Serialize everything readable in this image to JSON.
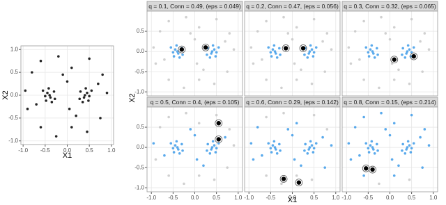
{
  "chart_data": [
    {
      "type": "scatter",
      "xlabel": "X1",
      "ylabel": "X2",
      "xlim": [
        -1.05,
        1.05
      ],
      "ylim": [
        -1.08,
        1.08
      ],
      "xticks": [
        {
          "value": -1,
          "label": "-1.0"
        },
        {
          "value": -0.5,
          "label": "-0.5"
        },
        {
          "value": 0,
          "label": "0.0"
        },
        {
          "value": 0.5,
          "label": "0.5"
        },
        {
          "value": 1,
          "label": "1.0"
        }
      ],
      "yticks": [
        {
          "value": -1,
          "label": "-1.0"
        },
        {
          "value": -0.5,
          "label": "-0.5"
        },
        {
          "value": 0,
          "label": "0.0"
        },
        {
          "value": 0.5,
          "label": "0.5"
        },
        {
          "value": 1,
          "label": "1.0"
        }
      ],
      "grid": true,
      "series": [
        {
          "color": "#000000",
          "x": [
            -0.45,
            -0.38,
            -0.5,
            -0.3,
            -0.42,
            -0.35,
            -0.55,
            -0.28,
            -0.48,
            -0.4,
            0.45,
            0.38,
            0.5,
            0.3,
            0.42,
            0.35,
            0.55,
            0.28,
            0.48,
            0.4,
            -0.8,
            -0.6,
            -0.2,
            0.1,
            0.5,
            0.8,
            0.9,
            0.75,
            0.45,
            0.1,
            -0.25,
            -0.6,
            -0.9,
            -0.95,
            0.0,
            0.05,
            -0.1,
            0.2,
            -0.7,
            0.7
          ],
          "y": [
            0.05,
            -0.05,
            -0.02,
            0.08,
            0.15,
            -0.15,
            0.1,
            -0.08,
            -0.12,
            0,
            0.05,
            -0.05,
            -0.02,
            0.08,
            0.15,
            -0.15,
            0.1,
            -0.08,
            -0.12,
            0,
            0.5,
            0.75,
            0.85,
            0.6,
            0.8,
            0.45,
            0.05,
            -0.5,
            -0.8,
            -0.7,
            -0.9,
            -0.7,
            -0.3,
            0.1,
            0.3,
            -0.3,
            0.45,
            -0.45,
            -0.2,
            0.25
          ]
        }
      ]
    },
    {
      "type": "facet_scatter",
      "xlabel": "X1",
      "ylabel": "X2",
      "xlim": [
        -1.1,
        1.1
      ],
      "ylim": [
        -1.1,
        1.0
      ],
      "xticks": [
        {
          "value": -1,
          "label": "-1.0"
        },
        {
          "value": -0.5,
          "label": "-0.5"
        },
        {
          "value": 0,
          "label": "0.0"
        },
        {
          "value": 0.5,
          "label": "0.5"
        },
        {
          "value": 1,
          "label": "1.0"
        }
      ],
      "yticks": [
        {
          "value": -1,
          "label": "-1.0"
        },
        {
          "value": -0.5,
          "label": "-0.5"
        },
        {
          "value": 0,
          "label": "0.0"
        },
        {
          "value": 0.5,
          "label": "0.5"
        }
      ],
      "grid": true,
      "panels": [
        {
          "title": "q = 0.1, Conn = 0.49, (eps = 0.049)",
          "series": [
            {
              "color": "#c8c8c8",
              "x": [
                -0.8,
                -0.6,
                -0.2,
                0.1,
                0.5,
                0.8,
                0.9,
                0.75,
                0.45,
                0.1,
                -0.25,
                -0.6,
                -0.9,
                -0.95,
                0.0,
                0.05,
                -0.1,
                0.2,
                -0.7,
                0.7
              ],
              "y": [
                0.5,
                0.75,
                0.85,
                0.6,
                0.8,
                0.45,
                0.05,
                -0.5,
                -0.8,
                -0.7,
                -0.9,
                -0.7,
                -0.3,
                0.1,
                0.3,
                -0.3,
                0.45,
                -0.45,
                -0.2,
                0.25
              ]
            },
            {
              "color": "#3d9be9",
              "x": [
                -0.45,
                -0.38,
                -0.5,
                -0.3,
                -0.42,
                -0.35,
                -0.55,
                -0.28,
                -0.48,
                -0.4,
                0.45,
                0.38,
                0.5,
                0.3,
                0.42,
                0.35,
                0.55,
                0.28,
                0.48,
                0.4
              ],
              "y": [
                0.05,
                -0.05,
                -0.02,
                0.08,
                0.15,
                -0.15,
                0.1,
                -0.08,
                -0.12,
                0,
                0.05,
                -0.05,
                -0.02,
                0.08,
                0.15,
                -0.15,
                0.1,
                -0.08,
                -0.12,
                0
              ]
            },
            {
              "color": "#000000",
              "x": [
                -0.3,
                0.25
              ],
              "y": [
                0.05,
                0.1
              ]
            }
          ]
        },
        {
          "title": "q = 0.2, Conn = 0.47, (eps = 0.056)",
          "series": [
            {
              "color": "#c8c8c8",
              "x": [
                -0.8,
                -0.6,
                -0.2,
                0.1,
                0.5,
                0.8,
                0.9,
                0.75,
                0.45,
                0.1,
                -0.25,
                -0.6,
                -0.9,
                -0.95,
                0.0,
                0.05,
                -0.1,
                0.2,
                -0.7,
                0.7
              ],
              "y": [
                0.5,
                0.75,
                0.85,
                0.6,
                0.8,
                0.45,
                0.05,
                -0.5,
                -0.8,
                -0.7,
                -0.9,
                -0.7,
                -0.3,
                0.1,
                0.3,
                -0.3,
                0.45,
                -0.45,
                -0.2,
                0.25
              ]
            },
            {
              "color": "#3d9be9",
              "x": [
                -0.45,
                -0.38,
                -0.5,
                -0.3,
                -0.42,
                -0.35,
                -0.55,
                -0.28,
                -0.48,
                -0.4,
                0.45,
                0.38,
                0.5,
                0.3,
                0.42,
                0.35,
                0.55,
                0.28,
                0.48,
                0.4
              ],
              "y": [
                0.05,
                -0.05,
                -0.02,
                0.08,
                0.15,
                -0.15,
                0.1,
                -0.08,
                -0.12,
                0,
                0.05,
                -0.05,
                -0.02,
                0.08,
                0.15,
                -0.15,
                0.1,
                -0.08,
                -0.12,
                0
              ]
            },
            {
              "color": "#000000",
              "x": [
                -0.15,
                0.25
              ],
              "y": [
                0.08,
                0.08
              ]
            }
          ]
        },
        {
          "title": "q = 0.3, Conn = 0.32, (eps = 0.065)",
          "series": [
            {
              "color": "#c8c8c8",
              "x": [
                -0.8,
                -0.6,
                -0.2,
                0.1,
                0.5,
                0.8,
                0.9,
                0.75,
                0.45,
                0.1,
                -0.25,
                -0.6,
                -0.9,
                -0.95,
                0.0,
                0.05,
                -0.1,
                0.2,
                -0.7,
                0.7
              ],
              "y": [
                0.5,
                0.75,
                0.85,
                0.6,
                0.8,
                0.45,
                0.05,
                -0.5,
                -0.8,
                -0.7,
                -0.9,
                -0.7,
                -0.3,
                0.1,
                0.3,
                -0.3,
                0.45,
                -0.45,
                -0.2,
                0.25
              ]
            },
            {
              "color": "#3d9be9",
              "x": [
                -0.45,
                -0.38,
                -0.5,
                -0.3,
                -0.42,
                -0.35,
                -0.55,
                -0.28,
                -0.48,
                -0.4,
                0.45,
                0.38,
                0.5,
                0.3,
                0.42,
                0.35,
                0.55,
                0.28,
                0.48,
                0.4
              ],
              "y": [
                0.05,
                -0.05,
                -0.02,
                0.08,
                0.15,
                -0.15,
                0.1,
                -0.08,
                -0.12,
                0,
                0.05,
                -0.05,
                -0.02,
                0.08,
                0.15,
                -0.15,
                0.1,
                -0.08,
                -0.12,
                0
              ]
            },
            {
              "color": "#000000",
              "x": [
                0.1,
                0.55
              ],
              "y": [
                -0.2,
                -0.12
              ]
            }
          ]
        },
        {
          "title": "q = 0.5, Conn = 0.4, (eps = 0.105)",
          "series": [
            {
              "color": "#c8c8c8",
              "x": [
                -0.8,
                -0.6,
                -0.2,
                0.1,
                0.5,
                0.8,
                0.9,
                0.75,
                0.45,
                0.1,
                -0.25,
                -0.6,
                -0.9
              ],
              "y": [
                0.5,
                0.75,
                0.85,
                0.6,
                0.8,
                0.45,
                0.05,
                -0.5,
                -0.8,
                -0.7,
                -0.9,
                -0.7,
                -0.3
              ]
            },
            {
              "color": "#3d9be9",
              "x": [
                -0.45,
                -0.38,
                -0.5,
                -0.3,
                -0.42,
                -0.35,
                -0.55,
                -0.28,
                -0.48,
                -0.4,
                0.45,
                0.38,
                0.5,
                0.3,
                0.42,
                0.35,
                0.55,
                0.28,
                0.48,
                0.4,
                0.0,
                0.05,
                -0.1,
                0.2,
                -0.7,
                0.7,
                -0.95
              ],
              "y": [
                0.05,
                -0.05,
                -0.02,
                0.08,
                0.15,
                -0.15,
                0.1,
                -0.08,
                -0.12,
                0,
                0.05,
                -0.05,
                -0.02,
                0.08,
                0.15,
                -0.15,
                0.1,
                -0.08,
                -0.12,
                0,
                0.3,
                -0.3,
                0.45,
                -0.45,
                -0.2,
                0.25,
                0.1
              ]
            },
            {
              "color": "#000000",
              "x": [
                0.55,
                0.55
              ],
              "y": [
                0.6,
                0.2
              ]
            }
          ]
        },
        {
          "title": "q = 0.6, Conn = 0.29, (eps = 0.142)",
          "series": [
            {
              "color": "#c8c8c8",
              "x": [
                -0.6,
                -0.2,
                0.5,
                0.8,
                0.45,
                0.1,
                -0.25,
                -0.6
              ],
              "y": [
                0.75,
                0.85,
                0.8,
                0.45,
                -0.8,
                -0.7,
                -0.9,
                -0.7
              ]
            },
            {
              "color": "#3d9be9",
              "x": [
                -0.45,
                -0.38,
                -0.5,
                -0.3,
                -0.42,
                -0.35,
                -0.55,
                -0.28,
                -0.48,
                -0.4,
                0.45,
                0.38,
                0.5,
                0.3,
                0.42,
                0.35,
                0.55,
                0.28,
                0.48,
                0.4,
                0.0,
                0.05,
                -0.1,
                0.2,
                -0.7,
                0.7,
                -0.95,
                -0.8,
                0.9,
                0.1,
                -0.9,
                0.75
              ],
              "y": [
                0.05,
                -0.05,
                -0.02,
                0.08,
                0.15,
                -0.15,
                0.1,
                -0.08,
                -0.12,
                0,
                0.05,
                -0.05,
                -0.02,
                0.08,
                0.15,
                -0.15,
                0.1,
                -0.08,
                -0.12,
                0,
                0.3,
                -0.3,
                0.45,
                -0.45,
                -0.2,
                0.25,
                0.1,
                0.5,
                0.05,
                0.6,
                -0.3,
                -0.5
              ]
            },
            {
              "color": "#000000",
              "x": [
                -0.2,
                0.15
              ],
              "y": [
                -0.78,
                -0.87
              ]
            }
          ]
        },
        {
          "title": "q = 0.8, Conn = 0.15, (eps = 0.214)",
          "series": [
            {
              "color": "#c8c8c8",
              "x": [
                0.45,
                -0.25
              ],
              "y": [
                -0.8,
                -0.9
              ]
            },
            {
              "color": "#3d9be9",
              "x": [
                -0.45,
                -0.38,
                -0.5,
                -0.3,
                -0.42,
                -0.35,
                -0.55,
                -0.28,
                -0.48,
                -0.4,
                0.45,
                0.38,
                0.5,
                0.3,
                0.42,
                0.35,
                0.55,
                0.28,
                0.48,
                0.4,
                -0.8,
                -0.6,
                -0.2,
                0.1,
                0.5,
                0.8,
                0.9,
                0.75,
                0.1,
                -0.6,
                -0.9,
                -0.95,
                0.0,
                0.05,
                -0.1,
                0.2,
                -0.7,
                0.7
              ],
              "y": [
                0.05,
                -0.05,
                -0.02,
                0.08,
                0.15,
                -0.15,
                0.1,
                -0.08,
                -0.12,
                0,
                0.05,
                -0.05,
                -0.02,
                0.08,
                0.15,
                -0.15,
                0.1,
                -0.08,
                -0.12,
                0,
                0.5,
                0.75,
                0.85,
                0.6,
                0.8,
                0.45,
                0.05,
                -0.5,
                -0.7,
                -0.7,
                -0.3,
                0.1,
                0.3,
                -0.3,
                0.45,
                -0.45,
                -0.2,
                0.25
              ]
            },
            {
              "color": "#000000",
              "x": [
                -0.55,
                -0.4
              ],
              "y": [
                -0.52,
                -0.55
              ]
            }
          ]
        }
      ]
    }
  ]
}
